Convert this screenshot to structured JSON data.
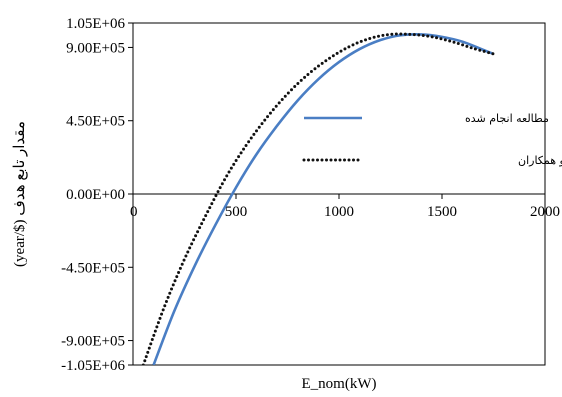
{
  "chart_data": {
    "type": "line",
    "title": "",
    "xlabel": "E_nom(kW)",
    "ylabel": "(year/$) مقدار تابع هدف",
    "xlim": [
      0,
      2000
    ],
    "ylim": [
      -1050000,
      1050000
    ],
    "x_ticks": [
      "0",
      "500",
      "1000",
      "1500",
      "2000"
    ],
    "y_ticks": [
      "1.05E+06",
      "9.00E+05",
      "4.50E+05",
      "0.00E+00",
      "-4.50E+05",
      "-9.00E+05",
      "-1.05E+06"
    ],
    "y_tick_values": [
      1050000,
      900000,
      450000,
      0,
      -450000,
      -900000,
      -1050000
    ],
    "grid": false,
    "legend_position": "center-right",
    "series": [
      {
        "name": "مطالعه انجام شده",
        "color": "#4a7ec4",
        "style": "solid",
        "x": [
          100,
          200,
          300,
          400,
          500,
          600,
          700,
          800,
          900,
          1000,
          1100,
          1200,
          1300,
          1400,
          1500,
          1600,
          1700,
          1750
        ],
        "y": [
          -1050000,
          -720000,
          -440000,
          -190000,
          40000,
          245000,
          420000,
          575000,
          705000,
          810000,
          890000,
          945000,
          975000,
          980000,
          965000,
          935000,
          885000,
          860000
        ]
      },
      {
        "name": "مطالعه صنایع و همکاران",
        "color": "#111111",
        "style": "dotted",
        "x": [
          50,
          150,
          250,
          350,
          450,
          550,
          650,
          750,
          850,
          950,
          1050,
          1150,
          1250,
          1350,
          1450,
          1550,
          1650,
          1750
        ],
        "y": [
          -1050000,
          -700000,
          -400000,
          -140000,
          100000,
          300000,
          470000,
          615000,
          735000,
          830000,
          905000,
          955000,
          980000,
          980000,
          965000,
          935000,
          895000,
          860000
        ]
      }
    ]
  }
}
